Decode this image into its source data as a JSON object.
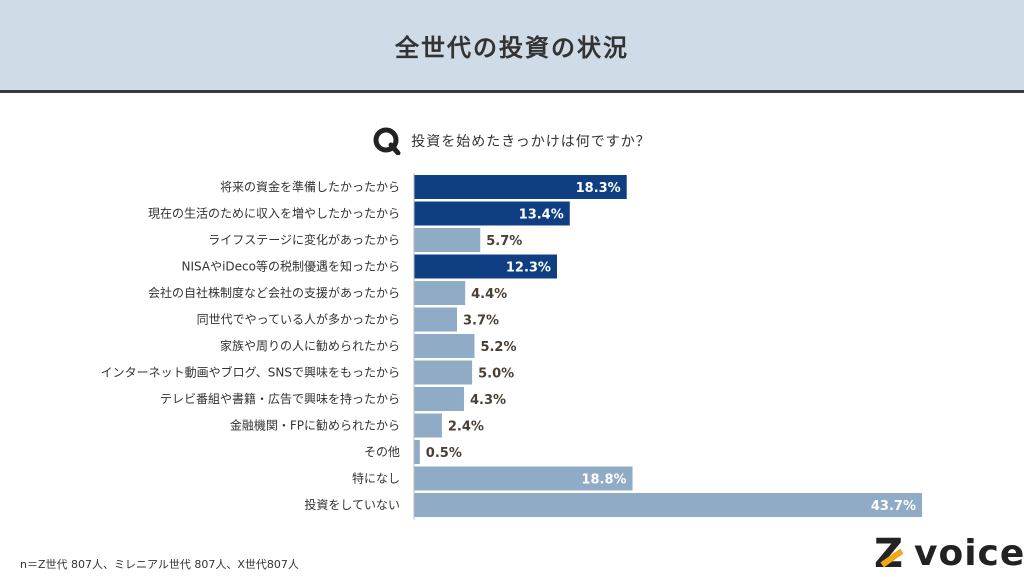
{
  "header": {
    "title": "全世代の投資の状況"
  },
  "question": {
    "text": "投資を始めたきっかけは何ですか？",
    "icon": "q-badge-icon"
  },
  "footnote": "n＝Z世代 807人、ミレニアル世代 807人、X世代807人",
  "logo": {
    "mark": "Z",
    "text": "voice"
  },
  "colors": {
    "highlight": "#0f3f82",
    "normal": "#8fabc6",
    "header_bg": "#cfdbe7"
  },
  "chart_data": {
    "type": "bar",
    "orientation": "horizontal",
    "categories": [
      "将来の資金を準備したかったから",
      "現在の生活のために収入を増やしたかったから",
      "ライフステージに変化があったから",
      "NISAやiDeco等の税制優遇を知ったから",
      "会社の自社株制度など会社の支援があったから",
      "同世代でやっている人が多かったから",
      "家族や周りの人に勧められたから",
      "インターネット動画やブログ、SNSで興味をもったから",
      "テレビ番組や書籍・広告で興味を持ったから",
      "金融機関・FPに勧められたから",
      "その他",
      "特になし",
      "投資をしていない"
    ],
    "values": [
      18.3,
      13.4,
      5.7,
      12.3,
      4.4,
      3.7,
      5.2,
      5.0,
      4.3,
      2.4,
      0.5,
      18.8,
      43.7
    ],
    "labels": [
      "18.3%",
      "13.4%",
      "5.7%",
      "12.3%",
      "4.4%",
      "3.7%",
      "5.2%",
      "5.0%",
      "4.3%",
      "2.4%",
      "0.5%",
      "18.8%",
      "43.7%"
    ],
    "highlighted": [
      true,
      true,
      false,
      true,
      false,
      false,
      false,
      false,
      false,
      false,
      false,
      false,
      false
    ],
    "unit": "%",
    "xlim": [
      0,
      43.7
    ],
    "grid": false,
    "legend": "none"
  }
}
